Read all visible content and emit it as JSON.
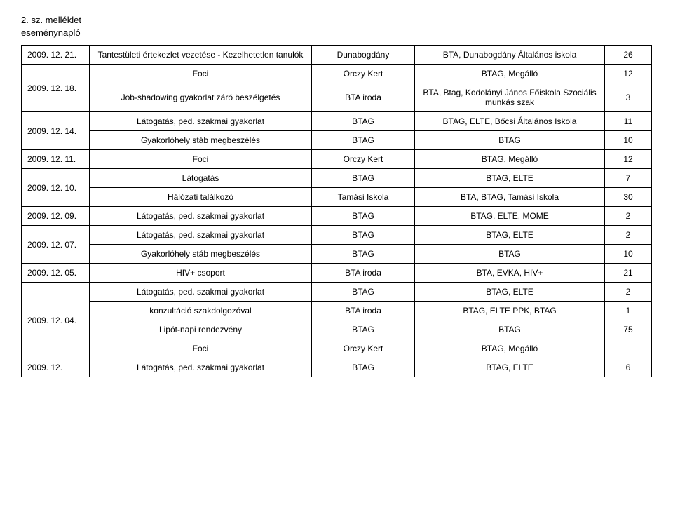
{
  "header": {
    "line1": "2. sz. melléklet",
    "line2": "eseménynapló"
  },
  "rows": [
    {
      "date": "2009. 12. 21.",
      "rowspan": 1,
      "activity": "Tantestületi értekezlet vezetése - Kezelhetetlen tanulók",
      "location": "Dunabogdány",
      "org": "BTA, Dunabogdány Általános iskola",
      "num": "26"
    },
    {
      "date": "2009. 12. 18.",
      "rowspan": 2,
      "activity": "Foci",
      "location": "Orczy Kert",
      "org": "BTAG, Megálló",
      "num": "12"
    },
    {
      "date": "",
      "rowspan": 0,
      "activity": "Job-shadowing gyakorlat záró beszélgetés",
      "location": "BTA iroda",
      "org": "BTA, Btag, Kodolányi János Főiskola Szociális munkás szak",
      "num": "3"
    },
    {
      "date": "2009. 12. 14.",
      "rowspan": 2,
      "activity": "Látogatás, ped. szakmai gyakorlat",
      "location": "BTAG",
      "org": "BTAG, ELTE, Bőcsi Általános Iskola",
      "num": "11"
    },
    {
      "date": "",
      "rowspan": 0,
      "activity": "Gyakorlóhely stáb megbeszélés",
      "location": "BTAG",
      "org": "BTAG",
      "num": "10"
    },
    {
      "date": "2009. 12. 11.",
      "rowspan": 1,
      "activity": "Foci",
      "location": "Orczy Kert",
      "org": "BTAG, Megálló",
      "num": "12"
    },
    {
      "date": "2009. 12. 10.",
      "rowspan": 2,
      "activity": "Látogatás",
      "location": "BTAG",
      "org": "BTAG, ELTE",
      "num": "7"
    },
    {
      "date": "",
      "rowspan": 0,
      "activity": "Hálózati találkozó",
      "location": "Tamási Iskola",
      "org": "BTA, BTAG, Tamási Iskola",
      "num": "30"
    },
    {
      "date": "2009. 12. 09.",
      "rowspan": 1,
      "activity": "Látogatás, ped. szakmai gyakorlat",
      "location": "BTAG",
      "org": "BTAG, ELTE, MOME",
      "num": "2"
    },
    {
      "date": "2009. 12. 07.",
      "rowspan": 2,
      "activity": "Látogatás, ped. szakmai gyakorlat",
      "location": "BTAG",
      "org": "BTAG, ELTE",
      "num": "2"
    },
    {
      "date": "",
      "rowspan": 0,
      "activity": "Gyakorlóhely stáb megbeszélés",
      "location": "BTAG",
      "org": "BTAG",
      "num": "10"
    },
    {
      "date": "2009. 12. 05.",
      "rowspan": 1,
      "activity": "HIV+ csoport",
      "location": "BTA iroda",
      "org": "BTA, EVKA, HIV+",
      "num": "21"
    },
    {
      "date": "2009. 12. 04.",
      "rowspan": 4,
      "activity": "Látogatás, ped. szakmai gyakorlat",
      "location": "BTAG",
      "org": "BTAG, ELTE",
      "num": "2"
    },
    {
      "date": "",
      "rowspan": 0,
      "activity": "konzultáció szakdolgozóval",
      "location": "BTA iroda",
      "org": "BTAG, ELTE PPK, BTAG",
      "num": "1"
    },
    {
      "date": "",
      "rowspan": 0,
      "activity": "Lipót-napi rendezvény",
      "location": "BTAG",
      "org": "BTAG",
      "num": "75"
    },
    {
      "date": "",
      "rowspan": 0,
      "activity": "Foci",
      "location": "Orczy Kert",
      "org": "BTAG, Megálló",
      "num": ""
    },
    {
      "date": "2009. 12.",
      "rowspan": 1,
      "activity": "Látogatás, ped. szakmai gyakorlat",
      "location": "BTAG",
      "org": "BTAG, ELTE",
      "num": "6"
    }
  ],
  "styles": {
    "border_color": "#000000",
    "font_family": "Verdana, Arial, sans-serif",
    "font_size_body": 12,
    "font_size_header": 13,
    "background": "#ffffff"
  }
}
